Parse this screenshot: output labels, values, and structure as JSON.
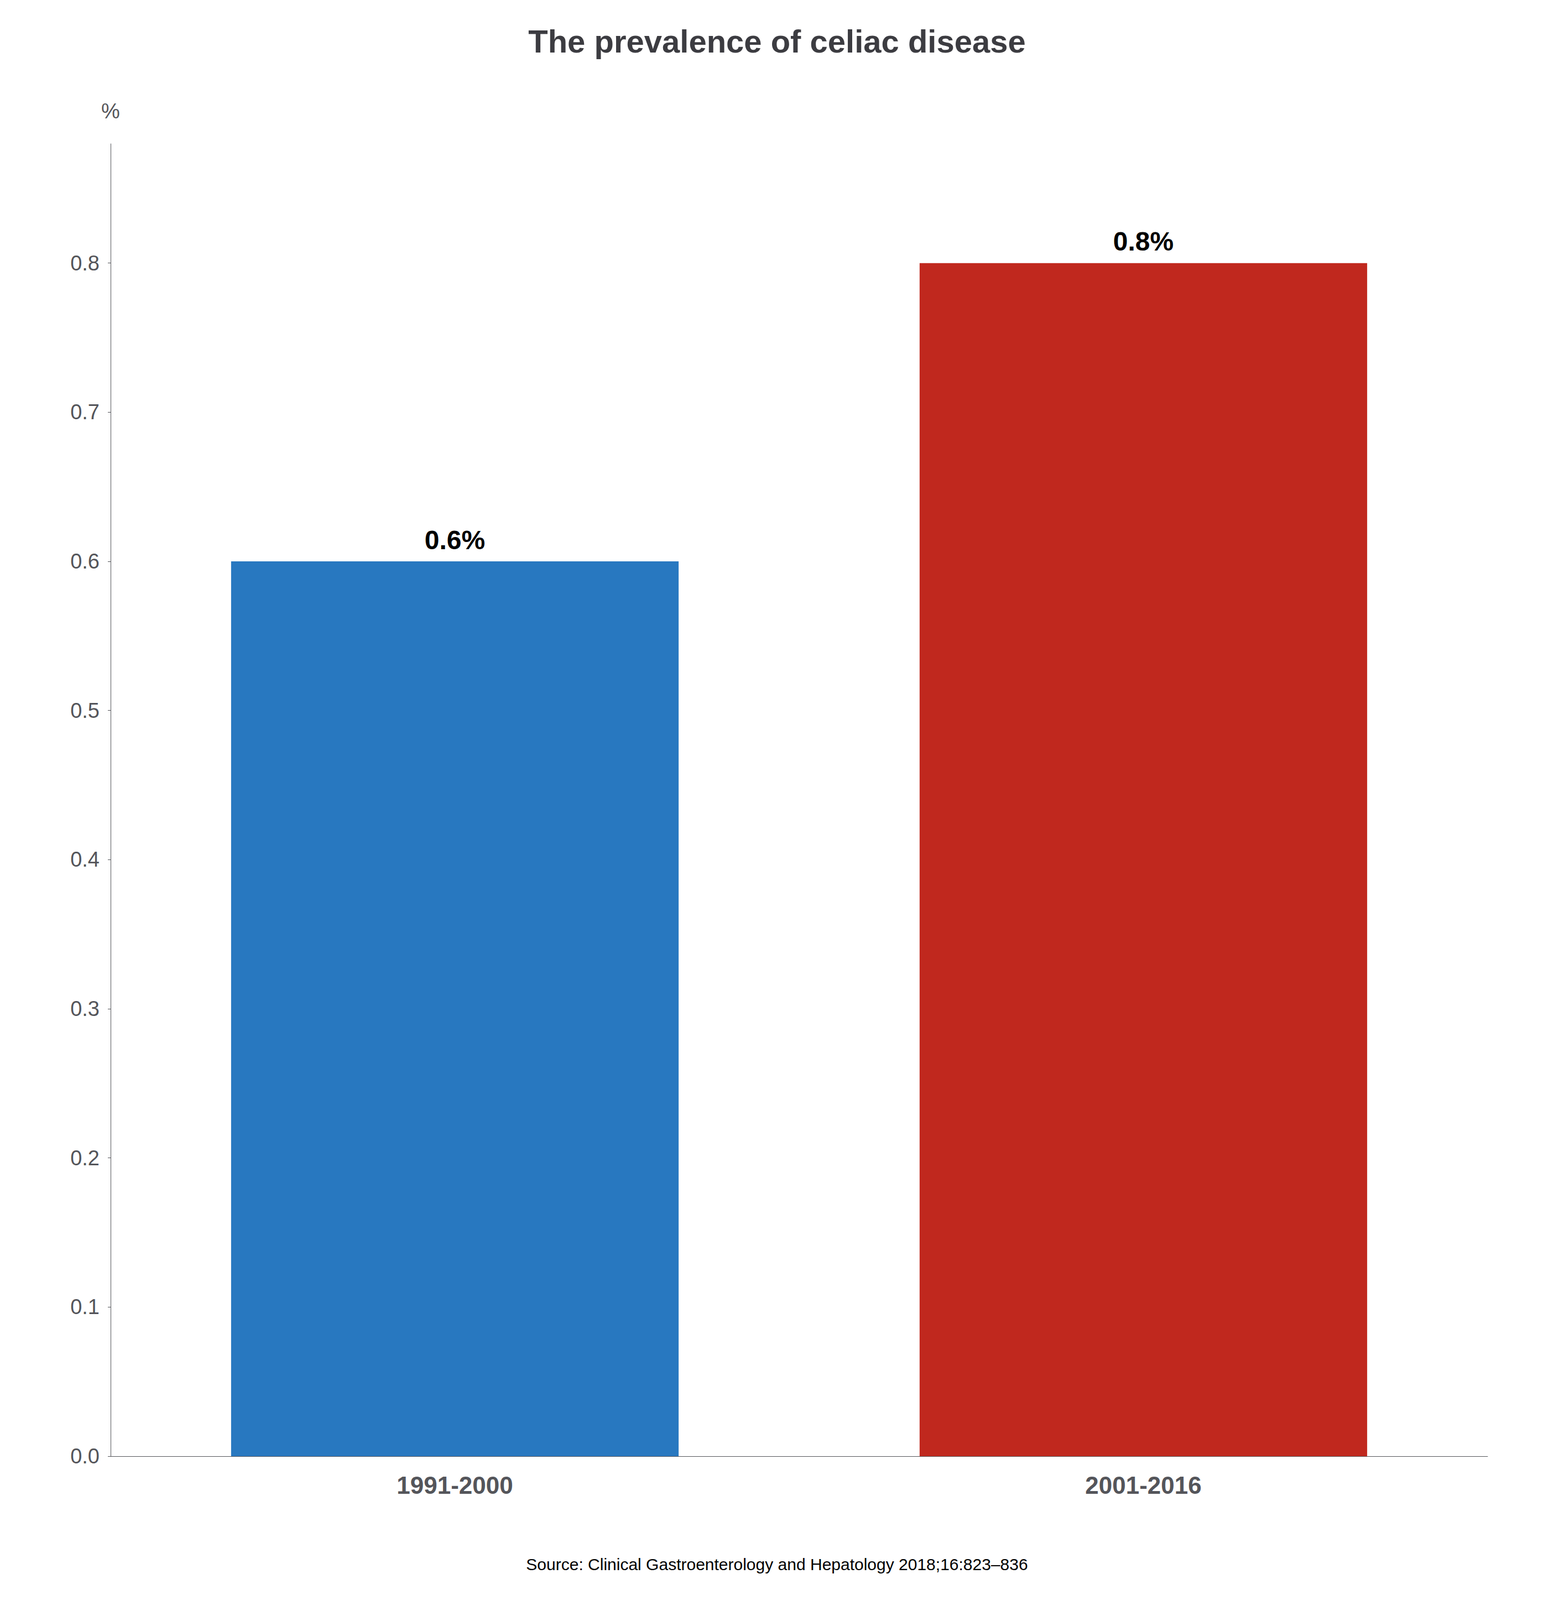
{
  "chart_data": {
    "type": "bar",
    "title": "The prevalence of celiac disease",
    "categories": [
      "1991-2000",
      "2001-2016"
    ],
    "values": [
      0.6,
      0.8
    ],
    "value_labels": [
      "0.6%",
      "0.8%"
    ],
    "data_labels": true,
    "colors": [
      "#2878c0",
      "#c0281e"
    ],
    "ylabel": "%",
    "ylim": [
      0.0,
      0.88
    ],
    "yticks": [
      {
        "value": 0.0,
        "label": "0.0"
      },
      0.1,
      0.2,
      0.3,
      0.4,
      0.5,
      0.6,
      0.7,
      0.8
    ],
    "grid": false,
    "annotations": [
      "Source: Clinical Gastroenterology and Hepatology 2018;16:823–836"
    ]
  }
}
